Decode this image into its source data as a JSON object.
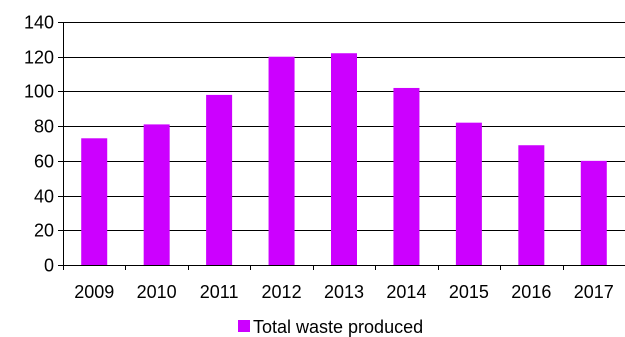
{
  "chart_data": {
    "type": "bar",
    "categories": [
      "2009",
      "2010",
      "2011",
      "2012",
      "2013",
      "2014",
      "2015",
      "2016",
      "2017"
    ],
    "series": [
      {
        "name": "Total waste produced",
        "values": [
          73,
          81,
          98,
          120,
          122,
          102,
          82,
          69,
          60
        ],
        "color": "#cc00ff"
      }
    ],
    "ylim": [
      0,
      140
    ],
    "yticks": [
      0,
      20,
      40,
      60,
      80,
      100,
      120,
      140
    ],
    "grid": true,
    "legend_position": "bottom",
    "gridline_color": "#000000"
  }
}
